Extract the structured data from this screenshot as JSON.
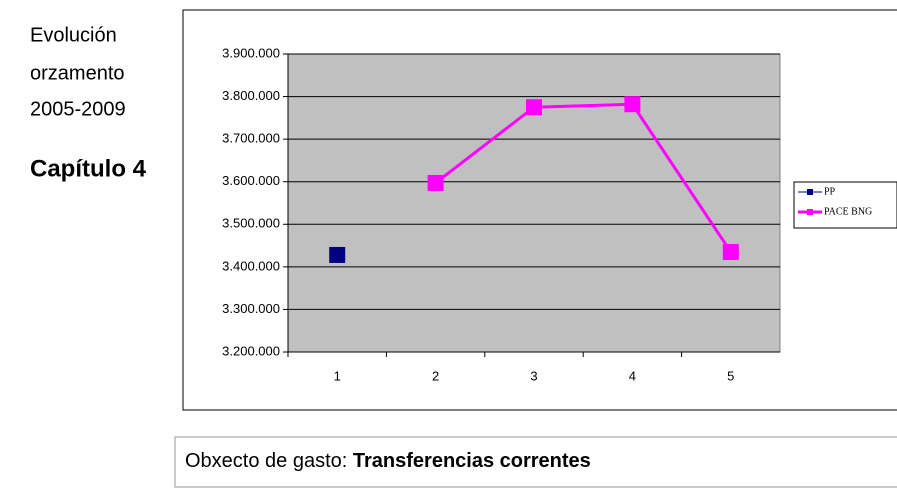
{
  "sidebar": {
    "lines": [
      "Evolución",
      "orzamento",
      "2005-2009"
    ],
    "chapter": "Capítulo 4"
  },
  "chart_data": {
    "type": "line",
    "categories": [
      "1",
      "2",
      "3",
      "4",
      "5"
    ],
    "series": [
      {
        "name": "PP",
        "color": "#000080",
        "values": [
          3428000,
          null,
          null,
          null,
          null
        ]
      },
      {
        "name": "PACE BNG",
        "color": "#ff00ff",
        "values": [
          null,
          3597000,
          3775000,
          3782000,
          3435000
        ]
      }
    ],
    "ylim": [
      3200000,
      3900000
    ],
    "yticks": [
      {
        "value": 3200000,
        "label": "3.200.000"
      },
      {
        "value": 3300000,
        "label": "3.300.000"
      },
      {
        "value": 3400000,
        "label": "3.400.000"
      },
      {
        "value": 3500000,
        "label": "3.500.000"
      },
      {
        "value": 3600000,
        "label": "3.600.000"
      },
      {
        "value": 3700000,
        "label": "3.700.000"
      },
      {
        "value": 3800000,
        "label": "3.800.000"
      },
      {
        "value": 3900000,
        "label": "3.900.000"
      }
    ],
    "grid": true,
    "legend": "right",
    "plot_background": "#c0c0c0"
  },
  "footer": {
    "label": "Obxecto de gasto:",
    "value": "Transferencias correntes"
  }
}
